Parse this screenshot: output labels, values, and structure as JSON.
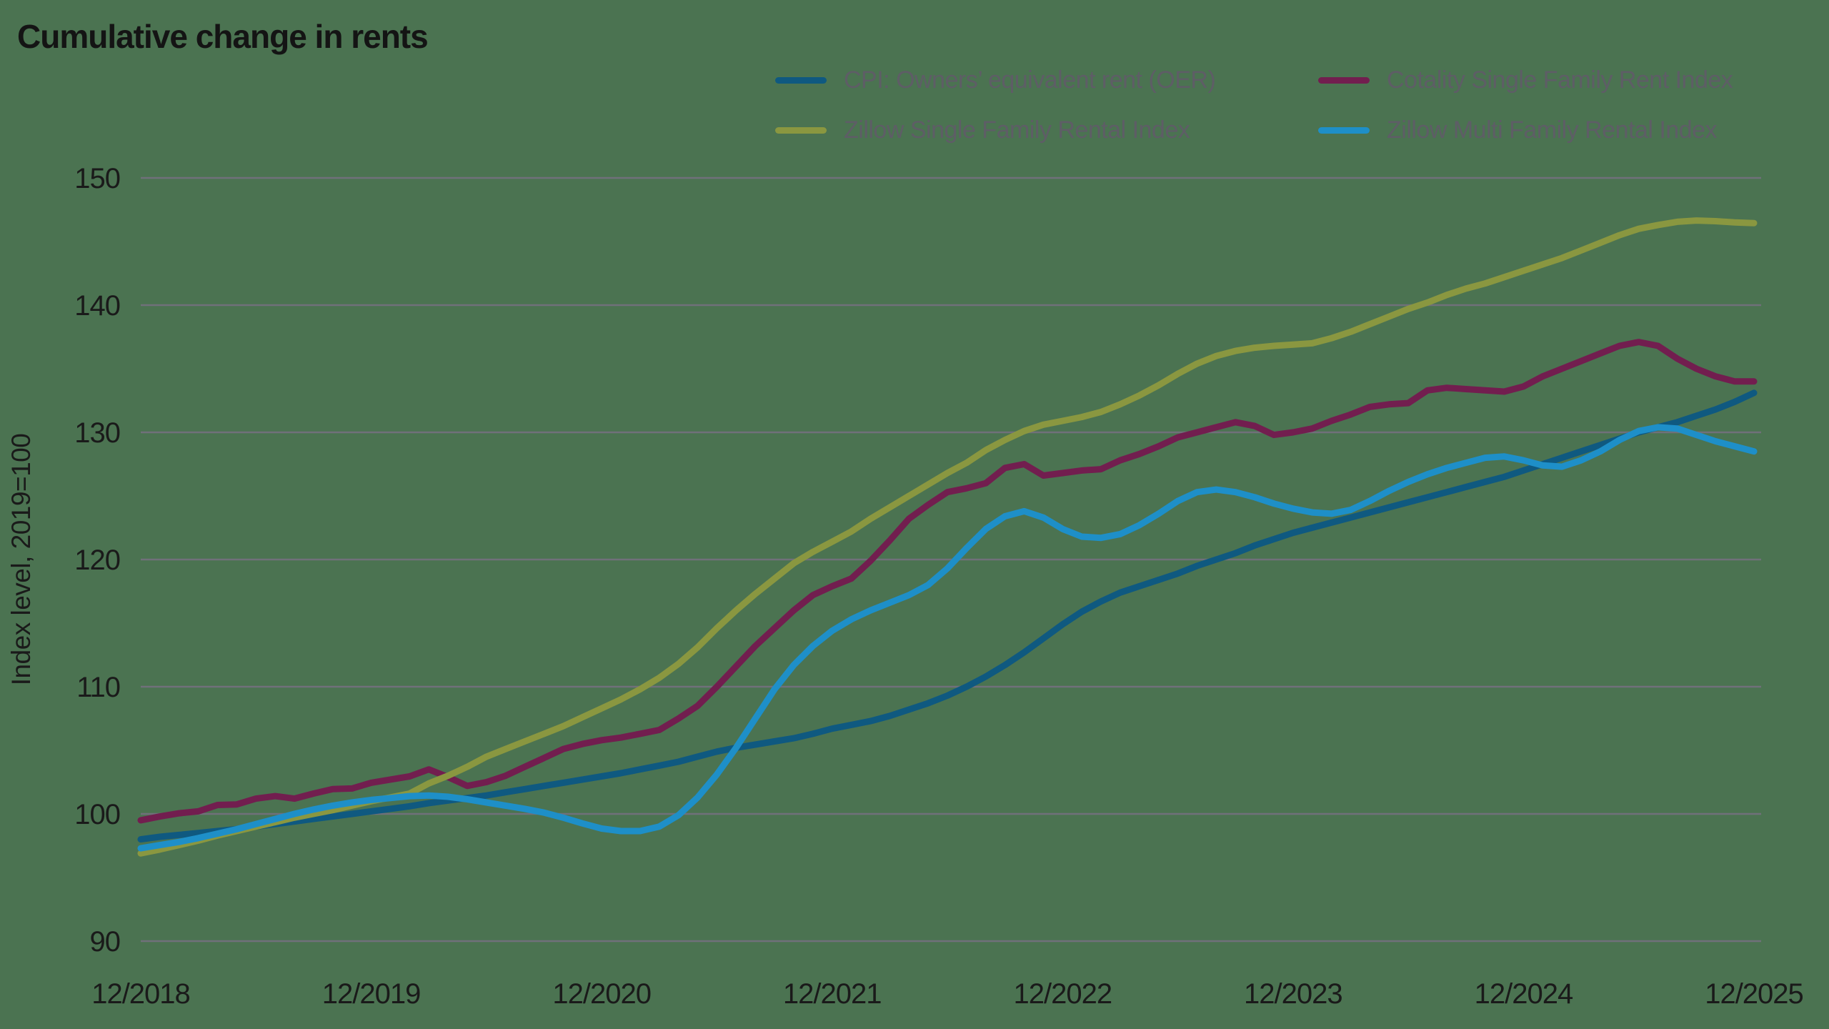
{
  "title": "Cumulative change in rents",
  "colors": {
    "background": "#4B7351",
    "title_text": "#141414",
    "axis_text": "#1A1A1A",
    "legend_text": "#5E5D66",
    "gridline": "#70707A",
    "oer_blue": "#0F5980",
    "cotality_maroon": "#721E4F",
    "zillow_sfr_olive": "#8A9740",
    "zillow_mfr_blue": "#1E8FC8"
  },
  "legend": {
    "items": [
      {
        "label": "CPI: Owners’ equivalent rent (OER)",
        "series": "oer",
        "color": "#0F5980",
        "position": "row1-col1"
      },
      {
        "label": "Cotality Single Family Rent Index",
        "series": "cotality_sfr",
        "color": "#721E4F",
        "position": "row1-col2"
      },
      {
        "label": "Zillow Single Family Rental Index",
        "series": "zillow_sfr",
        "color": "#8A9740",
        "position": "row2-col1"
      },
      {
        "label": "Zillow Multi Family Rental Index",
        "series": "zillow_mfr",
        "color": "#1E8FC8",
        "position": "row2-col2"
      }
    ]
  },
  "chart_data": {
    "type": "line",
    "title": "Cumulative change in rents",
    "xlabel": "",
    "ylabel": "Index level, 2019=100",
    "ylim": [
      90,
      150
    ],
    "yticks": [
      150,
      140,
      130,
      120,
      110,
      100,
      90
    ],
    "xtick_labels": [
      "12/2018",
      "12/2019",
      "12/2020",
      "12/2021",
      "12/2022",
      "12/2023",
      "12/2024",
      "12/2025"
    ],
    "x_unit": "monthly index points from 12/2018 (m0) through 12/2025 (m84), 85 points per series",
    "grid": "horizontal only",
    "legend_position": "top center-right, two columns",
    "series": [
      {
        "name": "CPI: Owners’ equivalent rent (OER)",
        "color": "#0F5980",
        "values": [
          98.0,
          98.2,
          98.35,
          98.5,
          98.65,
          98.8,
          99.0,
          99.2,
          99.4,
          99.6,
          99.8,
          100.0,
          100.2,
          100.4,
          100.6,
          100.85,
          101.05,
          101.25,
          101.45,
          101.7,
          101.95,
          102.2,
          102.45,
          102.7,
          102.95,
          103.2,
          103.5,
          103.8,
          104.1,
          104.5,
          104.9,
          105.2,
          105.45,
          105.7,
          105.95,
          106.3,
          106.7,
          107.0,
          107.3,
          107.7,
          108.2,
          108.7,
          109.3,
          110.0,
          110.8,
          111.7,
          112.7,
          113.8,
          114.9,
          115.9,
          116.7,
          117.4,
          117.9,
          118.4,
          118.9,
          119.5,
          120.0,
          120.5,
          121.1,
          121.6,
          122.1,
          122.5,
          122.9,
          123.3,
          123.7,
          124.1,
          124.5,
          124.9,
          125.3,
          125.7,
          126.1,
          126.5,
          127.0,
          127.5,
          128.0,
          128.5,
          129.0,
          129.5,
          130.0,
          130.4,
          130.8,
          131.3,
          131.8,
          132.4,
          133.1
        ]
      },
      {
        "name": "Cotality Single Family Rent Index",
        "color": "#721E4F",
        "values": [
          99.5,
          99.8,
          100.05,
          100.2,
          100.7,
          100.75,
          101.2,
          101.4,
          101.2,
          101.6,
          101.95,
          102.0,
          102.45,
          102.7,
          102.95,
          103.5,
          102.9,
          102.2,
          102.5,
          103.0,
          103.7,
          104.4,
          105.1,
          105.5,
          105.8,
          106.0,
          106.3,
          106.6,
          107.5,
          108.5,
          110.0,
          111.6,
          113.2,
          114.6,
          116.0,
          117.2,
          117.9,
          118.5,
          119.9,
          121.5,
          123.2,
          124.3,
          125.3,
          125.6,
          126.0,
          127.2,
          127.5,
          126.6,
          126.8,
          127.0,
          127.1,
          127.8,
          128.3,
          128.9,
          129.6,
          130.0,
          130.4,
          130.8,
          130.5,
          129.8,
          130.0,
          130.3,
          130.9,
          131.4,
          132.0,
          132.2,
          132.3,
          133.3,
          133.5,
          133.4,
          133.3,
          133.2,
          133.6,
          134.4,
          135.0,
          135.6,
          136.2,
          136.8,
          137.1,
          136.8,
          135.8,
          135.0,
          134.4,
          134.0,
          134.0
        ]
      },
      {
        "name": "Zillow Single Family Rental Index",
        "color": "#8A9740",
        "values": [
          96.9,
          97.2,
          97.55,
          97.9,
          98.3,
          98.65,
          99.0,
          99.35,
          99.7,
          100.0,
          100.3,
          100.65,
          101.0,
          101.3,
          101.6,
          102.4,
          103.0,
          103.7,
          104.5,
          105.1,
          105.7,
          106.3,
          106.9,
          107.6,
          108.3,
          109.0,
          109.8,
          110.7,
          111.8,
          113.1,
          114.6,
          116.0,
          117.3,
          118.5,
          119.7,
          120.6,
          121.4,
          122.2,
          123.2,
          124.1,
          125.0,
          125.9,
          126.8,
          127.6,
          128.6,
          129.4,
          130.1,
          130.6,
          130.9,
          131.2,
          131.6,
          132.2,
          132.9,
          133.7,
          134.6,
          135.4,
          136.0,
          136.4,
          136.65,
          136.8,
          136.9,
          137.0,
          137.4,
          137.9,
          138.5,
          139.1,
          139.7,
          140.2,
          140.8,
          141.3,
          141.7,
          142.2,
          142.7,
          143.2,
          143.7,
          144.3,
          144.9,
          145.5,
          146.0,
          146.3,
          146.55,
          146.65,
          146.6,
          146.5,
          146.45
        ]
      },
      {
        "name": "Zillow Multi Family Rental Index",
        "color": "#1E8FC8",
        "values": [
          97.3,
          97.55,
          97.8,
          98.1,
          98.45,
          98.8,
          99.2,
          99.6,
          100.0,
          100.35,
          100.65,
          100.9,
          101.1,
          101.25,
          101.4,
          101.45,
          101.35,
          101.15,
          100.9,
          100.65,
          100.4,
          100.1,
          99.7,
          99.25,
          98.85,
          98.65,
          98.65,
          99.0,
          99.9,
          101.3,
          103.1,
          105.2,
          107.5,
          109.8,
          111.7,
          113.2,
          114.4,
          115.3,
          116.0,
          116.6,
          117.2,
          118.0,
          119.3,
          120.9,
          122.4,
          123.4,
          123.8,
          123.3,
          122.4,
          121.8,
          121.7,
          122.0,
          122.7,
          123.6,
          124.6,
          125.3,
          125.5,
          125.3,
          124.9,
          124.4,
          124.0,
          123.7,
          123.6,
          123.9,
          124.6,
          125.4,
          126.1,
          126.7,
          127.2,
          127.6,
          128.0,
          128.1,
          127.8,
          127.4,
          127.3,
          127.8,
          128.5,
          129.4,
          130.1,
          130.4,
          130.3,
          129.8,
          129.3,
          128.9,
          128.5
        ]
      }
    ]
  }
}
